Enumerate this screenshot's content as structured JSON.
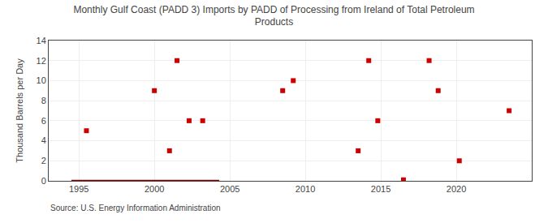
{
  "chart_data": {
    "type": "scatter",
    "title": "Monthly Gulf Coast (PADD 3) Imports by PADD of Processing from Ireland of Total Petroleum\nProducts",
    "ylabel": "Thousand Barrels per Day",
    "annotations": [
      "Source: U.S. Energy Information Administration"
    ],
    "xlim": [
      1993,
      2025
    ],
    "xticks": [
      1995,
      2000,
      2005,
      2010,
      2015,
      2020
    ],
    "ylim": [
      0,
      14
    ],
    "yticks": [
      0,
      2,
      4,
      6,
      8,
      10,
      12,
      14
    ],
    "grid": true,
    "series": [
      {
        "type": "line",
        "line_style": "solid",
        "color": "#8b0000",
        "x": [
          1994.5,
          2004.3
        ],
        "values": [
          0,
          0
        ]
      },
      {
        "type": "scatter",
        "marker": "square",
        "color": "#cc0000",
        "x": [
          1995.5,
          2000.0,
          2001.0,
          2001.5,
          2002.3,
          2003.2,
          2008.5,
          2009.2,
          2013.5,
          2014.2,
          2014.8,
          2016.5,
          2018.2,
          2018.8,
          2020.2,
          2023.5
        ],
        "values": [
          5,
          9,
          3,
          12,
          6,
          6,
          9,
          10,
          3,
          12,
          6,
          0.1,
          12,
          9,
          2,
          7
        ]
      }
    ]
  }
}
